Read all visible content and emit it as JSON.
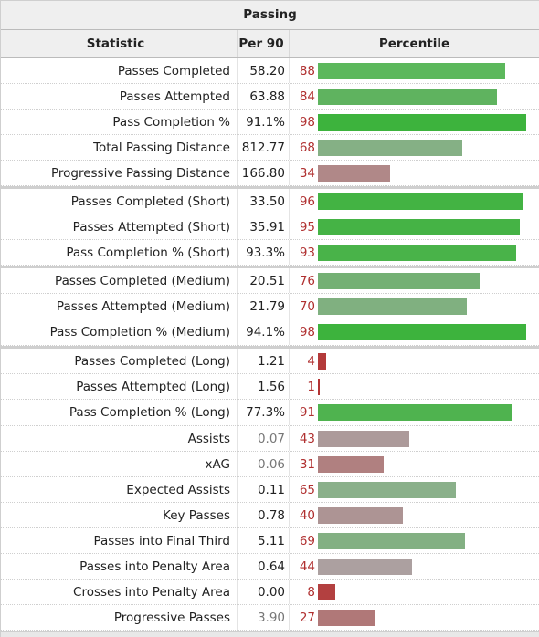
{
  "table": {
    "title": "Passing",
    "headers": {
      "statistic": "Statistic",
      "per90": "Per 90",
      "percentile": "Percentile"
    },
    "groups": [
      [
        {
          "stat": "Passes Completed",
          "per90": "58.20",
          "pct": 88,
          "color": "#5cb85c",
          "dim": false
        },
        {
          "stat": "Passes Attempted",
          "per90": "63.88",
          "pct": 84,
          "color": "#5fb35f",
          "dim": false
        },
        {
          "stat": "Pass Completion %",
          "per90": "91.1%",
          "pct": 98,
          "color": "#3db33d",
          "dim": false
        },
        {
          "stat": "Total Passing Distance",
          "per90": "812.77",
          "pct": 68,
          "color": "#85b085",
          "dim": false
        },
        {
          "stat": "Progressive Passing Distance",
          "per90": "166.80",
          "pct": 34,
          "color": "#b08888",
          "dim": false
        }
      ],
      [
        {
          "stat": "Passes Completed (Short)",
          "per90": "33.50",
          "pct": 96,
          "color": "#43b343",
          "dim": false
        },
        {
          "stat": "Passes Attempted (Short)",
          "per90": "35.91",
          "pct": 95,
          "color": "#45b345",
          "dim": false
        },
        {
          "stat": "Pass Completion % (Short)",
          "per90": "93.3%",
          "pct": 93,
          "color": "#49b349",
          "dim": false
        }
      ],
      [
        {
          "stat": "Passes Completed (Medium)",
          "per90": "20.51",
          "pct": 76,
          "color": "#74b074",
          "dim": false
        },
        {
          "stat": "Passes Attempted (Medium)",
          "per90": "21.79",
          "pct": 70,
          "color": "#80b080",
          "dim": false
        },
        {
          "stat": "Pass Completion % (Medium)",
          "per90": "94.1%",
          "pct": 98,
          "color": "#3db33d",
          "dim": false
        }
      ],
      [
        {
          "stat": "Passes Completed (Long)",
          "per90": "1.21",
          "pct": 4,
          "color": "#b33a3a",
          "dim": false
        },
        {
          "stat": "Passes Attempted (Long)",
          "per90": "1.56",
          "pct": 1,
          "color": "#b33333",
          "dim": false
        },
        {
          "stat": "Pass Completion % (Long)",
          "per90": "77.3%",
          "pct": 91,
          "color": "#4fb34f",
          "dim": false
        },
        {
          "stat": "Assists",
          "per90": "0.07",
          "pct": 43,
          "color": "#ac9a9a",
          "dim": true
        },
        {
          "stat": "xAG",
          "per90": "0.06",
          "pct": 31,
          "color": "#b08080",
          "dim": true
        },
        {
          "stat": "Expected Assists",
          "per90": "0.11",
          "pct": 65,
          "color": "#8ab08a",
          "dim": false
        },
        {
          "stat": "Key Passes",
          "per90": "0.78",
          "pct": 40,
          "color": "#ad9494",
          "dim": false
        },
        {
          "stat": "Passes into Final Third",
          "per90": "5.11",
          "pct": 69,
          "color": "#83b083",
          "dim": false
        },
        {
          "stat": "Passes into Penalty Area",
          "per90": "0.64",
          "pct": 44,
          "color": "#aca0a0",
          "dim": false
        },
        {
          "stat": "Crosses into Penalty Area",
          "per90": "0.00",
          "pct": 8,
          "color": "#b34040",
          "dim": false
        },
        {
          "stat": "Progressive Passes",
          "per90": "3.90",
          "pct": 27,
          "color": "#b07878",
          "dim": true
        }
      ]
    ]
  }
}
